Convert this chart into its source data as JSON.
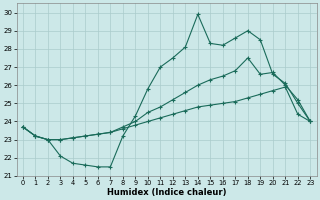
{
  "xlabel": "Humidex (Indice chaleur)",
  "bg_color": "#cce8e8",
  "grid_color": "#aacccc",
  "line_color": "#1a6b5a",
  "xlim": [
    -0.5,
    23.5
  ],
  "ylim": [
    21,
    30.5
  ],
  "yticks": [
    21,
    22,
    23,
    24,
    25,
    26,
    27,
    28,
    29,
    30
  ],
  "xticks": [
    0,
    1,
    2,
    3,
    4,
    5,
    6,
    7,
    8,
    9,
    10,
    11,
    12,
    13,
    14,
    15,
    16,
    17,
    18,
    19,
    20,
    21,
    22,
    23
  ],
  "line1_x": [
    0,
    1,
    2,
    3,
    4,
    5,
    6,
    7,
    8,
    9,
    10,
    11,
    12,
    13,
    14,
    15,
    16,
    17,
    18,
    19,
    20,
    21,
    22,
    23
  ],
  "line1_y": [
    23.7,
    23.2,
    23.0,
    22.1,
    21.7,
    21.6,
    21.5,
    21.5,
    23.2,
    24.3,
    25.8,
    27.0,
    27.5,
    28.1,
    29.9,
    28.3,
    28.2,
    28.6,
    29.0,
    28.5,
    26.6,
    26.1,
    25.0,
    24.0
  ],
  "line2_x": [
    0,
    1,
    2,
    3,
    4,
    5,
    6,
    7,
    8,
    9,
    10,
    11,
    12,
    13,
    14,
    15,
    16,
    17,
    18,
    19,
    20,
    21,
    22,
    23
  ],
  "line2_y": [
    23.7,
    23.2,
    23.0,
    23.0,
    23.1,
    23.2,
    23.3,
    23.4,
    23.7,
    24.0,
    24.5,
    24.8,
    25.2,
    25.6,
    26.0,
    26.3,
    26.5,
    26.8,
    27.5,
    26.6,
    26.7,
    26.0,
    25.2,
    24.0
  ],
  "line3_x": [
    0,
    1,
    2,
    3,
    4,
    5,
    6,
    7,
    8,
    9,
    10,
    11,
    12,
    13,
    14,
    15,
    16,
    17,
    18,
    19,
    20,
    21,
    22,
    23
  ],
  "line3_y": [
    23.7,
    23.2,
    23.0,
    23.0,
    23.1,
    23.2,
    23.3,
    23.4,
    23.6,
    23.8,
    24.0,
    24.2,
    24.4,
    24.6,
    24.8,
    24.9,
    25.0,
    25.1,
    25.3,
    25.5,
    25.7,
    25.9,
    24.4,
    24.0
  ]
}
